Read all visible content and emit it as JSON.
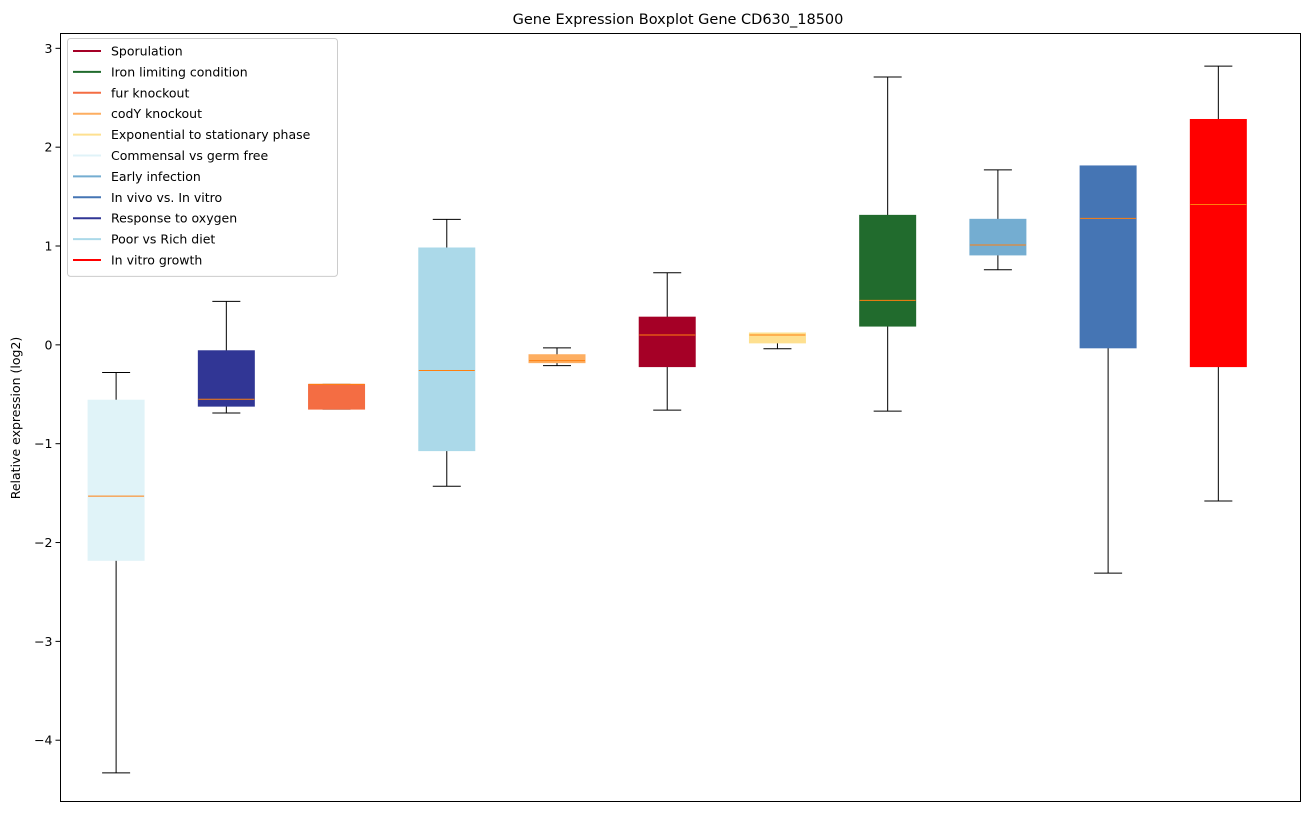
{
  "chart_data": {
    "type": "boxplot",
    "title": "Gene Expression Boxplot Gene CD630_18500",
    "xlabel": "",
    "ylabel": "Relative expression (log2)",
    "ylim": [
      -4.62,
      3.15
    ],
    "yticks": [
      3,
      2,
      1,
      0,
      -1,
      -2,
      -3,
      -4
    ],
    "ytick_labels": [
      "3",
      "2",
      "1",
      "0",
      "−1",
      "−2",
      "−3",
      "−4"
    ],
    "grid": false,
    "legend_position": "top-left",
    "legend": [
      {
        "label": "Sporulation",
        "color": "#a50026"
      },
      {
        "label": "Iron limiting condition",
        "color": "#216b2d"
      },
      {
        "label": "fur knockout",
        "color": "#f46d43"
      },
      {
        "label": "codY knockout",
        "color": "#fdae61"
      },
      {
        "label": "Exponential to stationary phase",
        "color": "#fee090"
      },
      {
        "label": "Commensal vs germ free",
        "color": "#e0f3f8"
      },
      {
        "label": "Early infection",
        "color": "#74add1"
      },
      {
        "label": "In vivo vs. In vitro",
        "color": "#4575b4"
      },
      {
        "label": "Response to oxygen",
        "color": "#313695"
      },
      {
        "label": "Poor vs Rich diet",
        "color": "#abd9e9"
      },
      {
        "label": "In vitro growth",
        "color": "#ff0000"
      }
    ],
    "boxes": [
      {
        "group": "Commensal vs germ free",
        "color": "#e0f3f8",
        "whisker_low": -4.33,
        "q1": -2.18,
        "median": -1.53,
        "q3": -0.56,
        "whisker_high": -0.28
      },
      {
        "group": "Response to oxygen",
        "color": "#313695",
        "whisker_low": -0.69,
        "q1": -0.62,
        "median": -0.55,
        "q3": -0.06,
        "whisker_high": 0.44
      },
      {
        "group": "fur knockout",
        "color": "#f46d43",
        "whisker_low": -0.65,
        "q1": -0.65,
        "median": -0.4,
        "q3": -0.4,
        "whisker_high": -0.4
      },
      {
        "group": "Poor vs Rich diet",
        "color": "#abd9e9",
        "whisker_low": -1.43,
        "q1": -1.07,
        "median": -0.26,
        "q3": 0.98,
        "whisker_high": 1.27
      },
      {
        "group": "codY knockout",
        "color": "#fdae61",
        "whisker_low": -0.21,
        "q1": -0.18,
        "median": -0.16,
        "q3": -0.1,
        "whisker_high": -0.03
      },
      {
        "group": "Sporulation",
        "color": "#a50026",
        "whisker_low": -0.66,
        "q1": -0.22,
        "median": 0.1,
        "q3": 0.28,
        "whisker_high": 0.73
      },
      {
        "group": "Exponential to stationary phase",
        "color": "#fee090",
        "whisker_low": -0.04,
        "q1": 0.02,
        "median": 0.1,
        "q3": 0.12,
        "whisker_high": 0.12
      },
      {
        "group": "Iron limiting condition",
        "color": "#216b2d",
        "whisker_low": -0.67,
        "q1": 0.19,
        "median": 0.45,
        "q3": 1.31,
        "whisker_high": 2.71
      },
      {
        "group": "Early infection",
        "color": "#74add1",
        "whisker_low": 0.76,
        "q1": 0.91,
        "median": 1.01,
        "q3": 1.27,
        "whisker_high": 1.77
      },
      {
        "group": "In vivo vs. In vitro",
        "color": "#4575b4",
        "whisker_low": -2.31,
        "q1": -0.03,
        "median": 1.28,
        "q3": 1.81,
        "whisker_high": 1.81
      },
      {
        "group": "In vitro growth",
        "color": "#ff0000",
        "whisker_low": -1.58,
        "q1": -0.22,
        "median": 1.42,
        "q3": 2.28,
        "whisker_high": 2.82
      }
    ],
    "median_color": "#ff7f0e"
  }
}
